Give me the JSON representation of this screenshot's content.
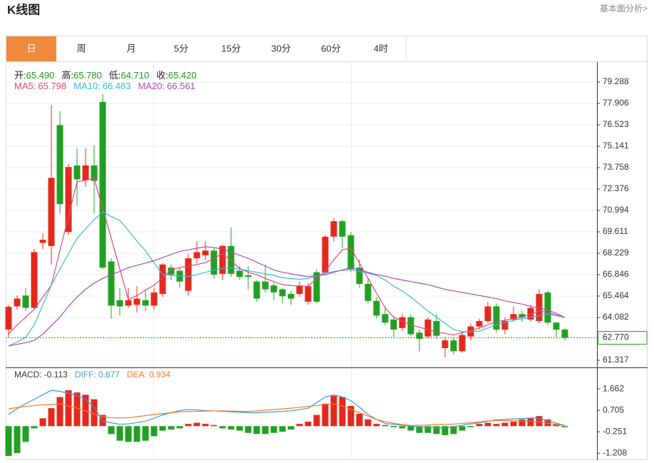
{
  "header": {
    "title": "K线图",
    "link": "基本面分析>"
  },
  "tabs": [
    "日",
    "周",
    "月",
    "5分",
    "15分",
    "30分",
    "60分",
    "4时"
  ],
  "active_tab": 0,
  "chart_data": [
    {
      "type": "candlestick",
      "up_color": "#e5281c",
      "down_color": "#22a022",
      "readout": {
        "names": [
          "开:",
          "高:",
          "低:",
          "收:"
        ],
        "values": [
          65.49,
          65.78,
          64.71,
          65.42
        ],
        "value_labels": [
          "65.490",
          "65.780",
          "64.710",
          "65.420"
        ],
        "color": "#1c9a1c"
      },
      "open": [
        63.3,
        64.8,
        65.5,
        64.7,
        68.9,
        68.7,
        76.5,
        69.6,
        73.9,
        72.95,
        73.9,
        78.0,
        67.7,
        65.2,
        64.85,
        64.9,
        65.2,
        64.85,
        65.6,
        67.3,
        67.1,
        65.8,
        67.9,
        68.1,
        68.4,
        66.9,
        68.7,
        67.1,
        66.8,
        66.4,
        66.4,
        66.15,
        65.9,
        65.6,
        65.6,
        65.1,
        67.0,
        67.0,
        69.3,
        70.3,
        69.4,
        67.3,
        66.25,
        65.15,
        64.3,
        63.95,
        63.4,
        64.1,
        63.1,
        62.85,
        63.85,
        62.1,
        62.6,
        61.9,
        62.85,
        63.5,
        63.85,
        64.8,
        63.3,
        63.95,
        64.3,
        63.95,
        63.85,
        65.7,
        63.75,
        63.3
      ],
      "high": [
        64.9,
        65.5,
        66.0,
        68.5,
        69.5,
        77.8,
        77.4,
        74.0,
        75.0,
        75.0,
        75.2,
        78.5,
        67.9,
        66.0,
        66.0,
        66.1,
        65.9,
        66.0,
        67.6,
        67.5,
        67.3,
        68.2,
        69.0,
        69.0,
        68.6,
        68.8,
        69.9,
        67.4,
        67.4,
        66.5,
        67.5,
        66.3,
        66.0,
        65.8,
        66.4,
        66.3,
        67.2,
        69.4,
        70.5,
        70.4,
        69.6,
        67.8,
        66.6,
        65.4,
        64.8,
        64.2,
        64.3,
        64.3,
        63.3,
        64.1,
        64.3,
        62.8,
        62.8,
        63.1,
        63.7,
        64.0,
        65.1,
        65.0,
        64.1,
        64.8,
        64.5,
        64.9,
        65.9,
        65.8,
        63.8,
        63.4
      ],
      "low": [
        62.8,
        64.6,
        64.5,
        64.6,
        68.5,
        67.5,
        70.8,
        69.4,
        71.3,
        72.5,
        70.8,
        67.2,
        64.0,
        64.2,
        64.7,
        64.4,
        64.5,
        64.6,
        65.4,
        66.5,
        66.0,
        65.5,
        67.6,
        67.8,
        66.6,
        66.5,
        66.7,
        66.5,
        65.9,
        65.1,
        65.7,
        65.2,
        65.0,
        64.9,
        65.4,
        64.9,
        65.0,
        66.8,
        69.0,
        68.6,
        67.0,
        66.0,
        65.0,
        64.0,
        63.6,
        62.8,
        63.2,
        62.9,
        61.9,
        62.7,
        62.7,
        61.5,
        61.7,
        61.8,
        62.6,
        63.3,
        63.7,
        63.1,
        63.0,
        63.8,
        63.8,
        63.8,
        63.7,
        63.6,
        62.8,
        62.6
      ],
      "close": [
        64.77,
        65.3,
        64.7,
        68.3,
        69.1,
        73.1,
        71.4,
        73.8,
        73.0,
        73.9,
        72.9,
        67.3,
        64.85,
        64.8,
        65.2,
        65.3,
        64.85,
        65.7,
        67.5,
        66.85,
        66.4,
        67.9,
        68.3,
        68.4,
        66.85,
        68.7,
        66.9,
        66.7,
        66.7,
        65.3,
        65.9,
        65.7,
        65.45,
        65.3,
        66.15,
        66.1,
        65.1,
        69.3,
        70.3,
        69.3,
        67.2,
        66.25,
        65.15,
        64.2,
        63.75,
        63.3,
        64.1,
        63.0,
        62.7,
        63.95,
        62.9,
        62.6,
        61.9,
        62.95,
        63.5,
        63.85,
        64.8,
        63.3,
        63.85,
        64.3,
        64.1,
        64.7,
        65.6,
        63.75,
        63.3,
        62.77
      ],
      "series": [
        {
          "name": "MA5:",
          "color": "#e0487c",
          "last_value": 65.798,
          "values": [
            63.02,
            63.6,
            64.1,
            64.6,
            65.4,
            66.16,
            68.4,
            70.6,
            72.84,
            72.95,
            73.07,
            71.1,
            69.2,
            67.2,
            65.23,
            65.5,
            65.85,
            66.16,
            66.65,
            67.17,
            67.3,
            67.4,
            67.5,
            67.62,
            67.9,
            68.2,
            67.75,
            67.25,
            67.0,
            66.85,
            66.6,
            66.4,
            66.2,
            66.15,
            66.1,
            66.1,
            66.6,
            67.08,
            67.8,
            68.46,
            68.55,
            67.6,
            66.62,
            65.65,
            64.7,
            64.1,
            63.85,
            63.6,
            63.45,
            63.3,
            63.15,
            63.05,
            62.95,
            63.1,
            63.25,
            63.4,
            63.6,
            63.8,
            63.9,
            64.0,
            64.1,
            64.3,
            64.5,
            64.4,
            64.25,
            64.08
          ]
        },
        {
          "name": "MA10:",
          "color": "#36b9d3",
          "last_value": 66.483,
          "values": [
            62.24,
            62.5,
            62.8,
            63.6,
            64.9,
            66.16,
            67.2,
            68.2,
            69.2,
            69.8,
            70.4,
            70.9,
            70.6,
            70.35,
            69.7,
            69.0,
            68.4,
            67.6,
            66.85,
            66.8,
            66.75,
            66.72,
            66.85,
            67.0,
            67.15,
            67.25,
            67.3,
            67.2,
            67.1,
            67.0,
            66.9,
            66.8,
            66.65,
            66.6,
            66.55,
            66.6,
            66.75,
            66.95,
            67.05,
            67.12,
            67.17,
            67.05,
            66.95,
            66.8,
            66.5,
            66.1,
            65.8,
            65.4,
            64.95,
            64.5,
            64.1,
            63.7,
            63.3,
            63.16,
            63.16,
            63.2,
            63.4,
            63.6,
            63.75,
            63.9,
            64.0,
            64.1,
            64.2,
            64.3,
            64.2,
            64.08
          ]
        },
        {
          "name": "MA20:",
          "color": "#ad48b5",
          "last_value": 66.561,
          "values": [
            62.24,
            62.35,
            62.45,
            62.6,
            63.0,
            63.55,
            64.1,
            64.8,
            65.4,
            65.9,
            66.3,
            66.6,
            66.85,
            67.05,
            67.3,
            67.45,
            67.6,
            67.75,
            67.95,
            68.15,
            68.35,
            68.45,
            68.55,
            68.65,
            68.6,
            68.5,
            68.3,
            68.1,
            67.9,
            67.65,
            67.4,
            67.15,
            67.0,
            66.9,
            66.8,
            66.72,
            66.78,
            66.85,
            67.0,
            67.15,
            67.3,
            67.15,
            67.0,
            66.85,
            66.75,
            66.6,
            66.5,
            66.4,
            66.3,
            66.2,
            66.05,
            65.9,
            65.8,
            65.7,
            65.6,
            65.5,
            65.4,
            65.3,
            65.15,
            65.05,
            64.95,
            64.8,
            64.7,
            64.55,
            64.35,
            64.08
          ]
        }
      ],
      "last_price": {
        "value": 62.77,
        "label": "62.770"
      },
      "ylim": [
        60.856,
        80.578
      ],
      "yticks": [
        79.288,
        77.906,
        76.523,
        75.141,
        73.758,
        72.376,
        70.994,
        69.611,
        68.229,
        66.846,
        65.464,
        64.082,
        61.317
      ],
      "grid": true
    },
    {
      "type": "macd",
      "up_color": "#e5281c",
      "down_color": "#22a022",
      "series": [
        {
          "name": "MACD:",
          "color": "#333333",
          "last_value": -0.113,
          "values": [
            -1.33,
            -1.2,
            -0.7,
            -0.1,
            0.35,
            0.8,
            1.3,
            1.6,
            1.5,
            1.4,
            1.2,
            0.5,
            -0.35,
            -0.65,
            -0.7,
            -0.7,
            -0.65,
            -0.45,
            -0.2,
            -0.15,
            -0.1,
            0.1,
            0.15,
            0.1,
            0.05,
            -0.1,
            -0.15,
            -0.2,
            -0.3,
            -0.35,
            -0.35,
            -0.3,
            -0.25,
            -0.15,
            0.1,
            0.2,
            0.5,
            1.0,
            1.35,
            1.3,
            0.9,
            0.55,
            0.3,
            0.1,
            0.05,
            -0.05,
            -0.1,
            -0.2,
            -0.3,
            -0.3,
            -0.35,
            -0.4,
            -0.35,
            -0.2,
            -0.05,
            0.1,
            0.15,
            0.1,
            0.15,
            0.2,
            0.3,
            0.35,
            0.45,
            0.3,
            0.1,
            -0.05
          ]
        },
        {
          "name": "DIFF:",
          "color": "#3a9ad9",
          "last_value": 0.877,
          "values": [
            0.52,
            0.78,
            1.0,
            1.2,
            1.4,
            1.6,
            1.55,
            1.47,
            1.35,
            1.2,
            0.85,
            0.22,
            0.15,
            0.08,
            0.1,
            0.16,
            0.22,
            0.35,
            0.5,
            0.6,
            0.7,
            0.74,
            0.72,
            0.69,
            0.68,
            0.66,
            0.64,
            0.62,
            0.6,
            0.6,
            0.62,
            0.64,
            0.66,
            0.68,
            0.74,
            0.8,
            1.05,
            1.3,
            1.39,
            1.3,
            1.14,
            0.85,
            0.52,
            0.3,
            0.12,
            0.08,
            0.04,
            0.0,
            -0.03,
            -0.05,
            -0.07,
            -0.09,
            -0.03,
            0.04,
            0.1,
            0.15,
            0.22,
            0.28,
            0.3,
            0.32,
            0.34,
            0.36,
            0.35,
            0.24,
            0.13,
            0.03
          ]
        },
        {
          "name": "DEA:",
          "color": "#f07c24",
          "last_value": 0.934,
          "values": [
            0.77,
            0.83,
            0.88,
            0.92,
            0.95,
            0.97,
            0.99,
            0.9,
            0.8,
            0.68,
            0.55,
            0.42,
            0.37,
            0.37,
            0.37,
            0.42,
            0.47,
            0.52,
            0.56,
            0.6,
            0.64,
            0.65,
            0.66,
            0.67,
            0.68,
            0.68,
            0.67,
            0.66,
            0.66,
            0.68,
            0.71,
            0.74,
            0.77,
            0.8,
            0.84,
            0.88,
            0.92,
            0.96,
            0.99,
            0.9,
            0.75,
            0.6,
            0.45,
            0.3,
            0.2,
            0.13,
            0.07,
            0.03,
            0.04,
            0.05,
            0.07,
            0.08,
            0.09,
            0.12,
            0.15,
            0.19,
            0.23,
            0.25,
            0.25,
            0.24,
            0.23,
            0.22,
            0.2,
            0.13,
            0.07,
            0.03
          ]
        }
      ],
      "ylim": [
        -1.517,
        2.588
      ],
      "yticks": [
        1.662,
        0.705,
        -0.251,
        -1.208
      ]
    }
  ]
}
